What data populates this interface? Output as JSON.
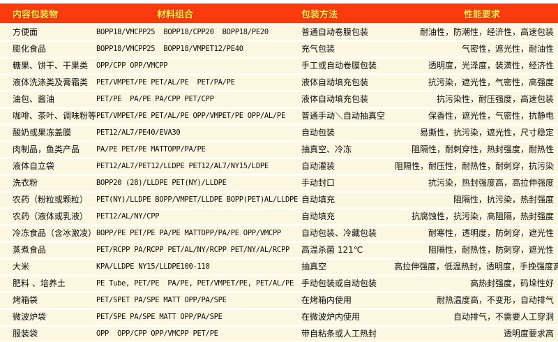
{
  "colors": {
    "header_bg": "#fb3a0e",
    "header_text": "#ffe84d",
    "row_bg": "#fbf7e1",
    "separator": "#ffffff",
    "body_text": "#0d0d0d"
  },
  "table": {
    "headers": [
      "内容包装物",
      "材料组合",
      "包装方法",
      "性能要求"
    ],
    "rows": [
      {
        "item": "方便面",
        "materials": "BOPP18/VMCPP25  BOPP18/CPP20  BOPP18/PE20",
        "method": "普通自动卷膜包装",
        "performance": "耐油性，防潮性，经济性，高速包装"
      },
      {
        "item": "膨化食品",
        "materials": "BOPP18/VMCPP25  BOPP18/VMPET12/PE40",
        "method": "充气包装",
        "performance": "气密性，遮光性，耐油性"
      },
      {
        "item": "糖果、饼干、干果类",
        "materials": "OPP/CPP OPP/VMCPP",
        "method": "手工或自动卷膜包装",
        "performance": "透明度，光泽度，装潢性，经济性"
      },
      {
        "item": "液体洗涤类及膏霜类",
        "materials": "PET/VMPET/PE PET/AL/PE  PET/PA/PE",
        "method": "液体自动填充包装",
        "performance": "抗污染，遮光性，气密性，高强度"
      },
      {
        "item": "油包、酱油",
        "materials": "PET/PE  PA/PE PA/CPP PET/CPP",
        "method": "液体自动填充包装",
        "performance": "抗污染性，耐压强度，高速包装"
      },
      {
        "item": "咖啡、茶叶、调味粉等",
        "materials": "PET/VMPET/PE PET/AL/PE OPP/VMPET/PE OPP/AL/PE",
        "method": "普通手动＼自动抽真空",
        "performance": "保香性，遮光性，气密性，抗静电"
      },
      {
        "item": "酸奶或果冻盖膜",
        "materials": "PET12/AL7/PE40/EVA30",
        "method": "自动包装",
        "performance": "易撕性，抗污染，遮光性，尺寸稳定"
      },
      {
        "item": "肉制品，鱼类产品",
        "materials": "PA/PE PET/PE MATTOPP/PA/PE",
        "method": "抽真空、冷冻",
        "performance": "阻隔性，耐刺穿性，热封强度，耐热性"
      },
      {
        "item": "液体自立袋",
        "materials": "PET12/AL7/PET12/LLDPE PET12/AL7/NY15/LDPE",
        "method": "自动灌装",
        "performance": "阻隔性，耐压性，耐热性，耐刺穿，抗污染"
      },
      {
        "item": "洗衣粉",
        "materials": "BOPP20 (28)/LLDPE PET(NY)/LLDPE",
        "method": "手动封口",
        "performance": "抗污染，热封强度高，高拉伸强度"
      },
      {
        "item": "农药（粉粒或颗粒）",
        "materials": "PET(NY)/LLDPE BOPP/VMPET/LLDPE BOPP(PET)AL/LLDPE",
        "method": "自动填充",
        "performance": "阻隔性，抗污染，热封强度"
      },
      {
        "item": "农药（液体或乳液）",
        "materials": "PET12/AL/NY/CPP",
        "method": "自动填充",
        "performance": "抗腐蚀性，抗污染，高阻隔，热封强度"
      },
      {
        "item": "冷冻食品（含冰激凌）",
        "materials": "BOPP/PE PET/PE PA/PE MATTOPP/PA/PE OPP/VMCPP",
        "method": "自动包装、冷藏包装",
        "performance": "耐寒性，透明度，防刺穿，遮光性"
      },
      {
        "item": "蒸煮食品",
        "materials": "PET/RCPP PA/RCPP PET/AL/NY/RCPP PET/NY/AL/RCPP",
        "method": "高温杀菌 121℃",
        "performance": "阻隔性，耐热性，防刺穿，遮光性"
      },
      {
        "item": "大米",
        "materials": "KPA/LLDPE NY15/LLDPE100-110",
        "method": "抽真空",
        "performance": "高拉伸强度，低温热封，透明度，手挽强度高"
      },
      {
        "item": "肥料 、培养土",
        "materials": "PE Tube, PET/PE  PA/PE, PET/VMPET/PE, PET/AL/PE",
        "method": "手动包装或自动包装",
        "performance": "高热封强度，码垛性好"
      },
      {
        "item": "烤箱袋",
        "materials": "PET/SPET PA/SPE MATT OPP/PA/SPE",
        "method": "在烤箱内使用",
        "performance": "耐热温度高，不变形，自动排气"
      },
      {
        "item": "微波炉袋",
        "materials": "PET/SPE PA/SPE MATT OPP/PA/SPE",
        "method": "在微波炉内使用",
        "performance": "自动排气，不需要人工穿洞"
      },
      {
        "item": "服装袋",
        "materials": "OPP  OPP/CPP OPP/VMCPP PET/PE",
        "method": "带自粘条或人工热封",
        "performance": "透明度要求高"
      }
    ]
  }
}
